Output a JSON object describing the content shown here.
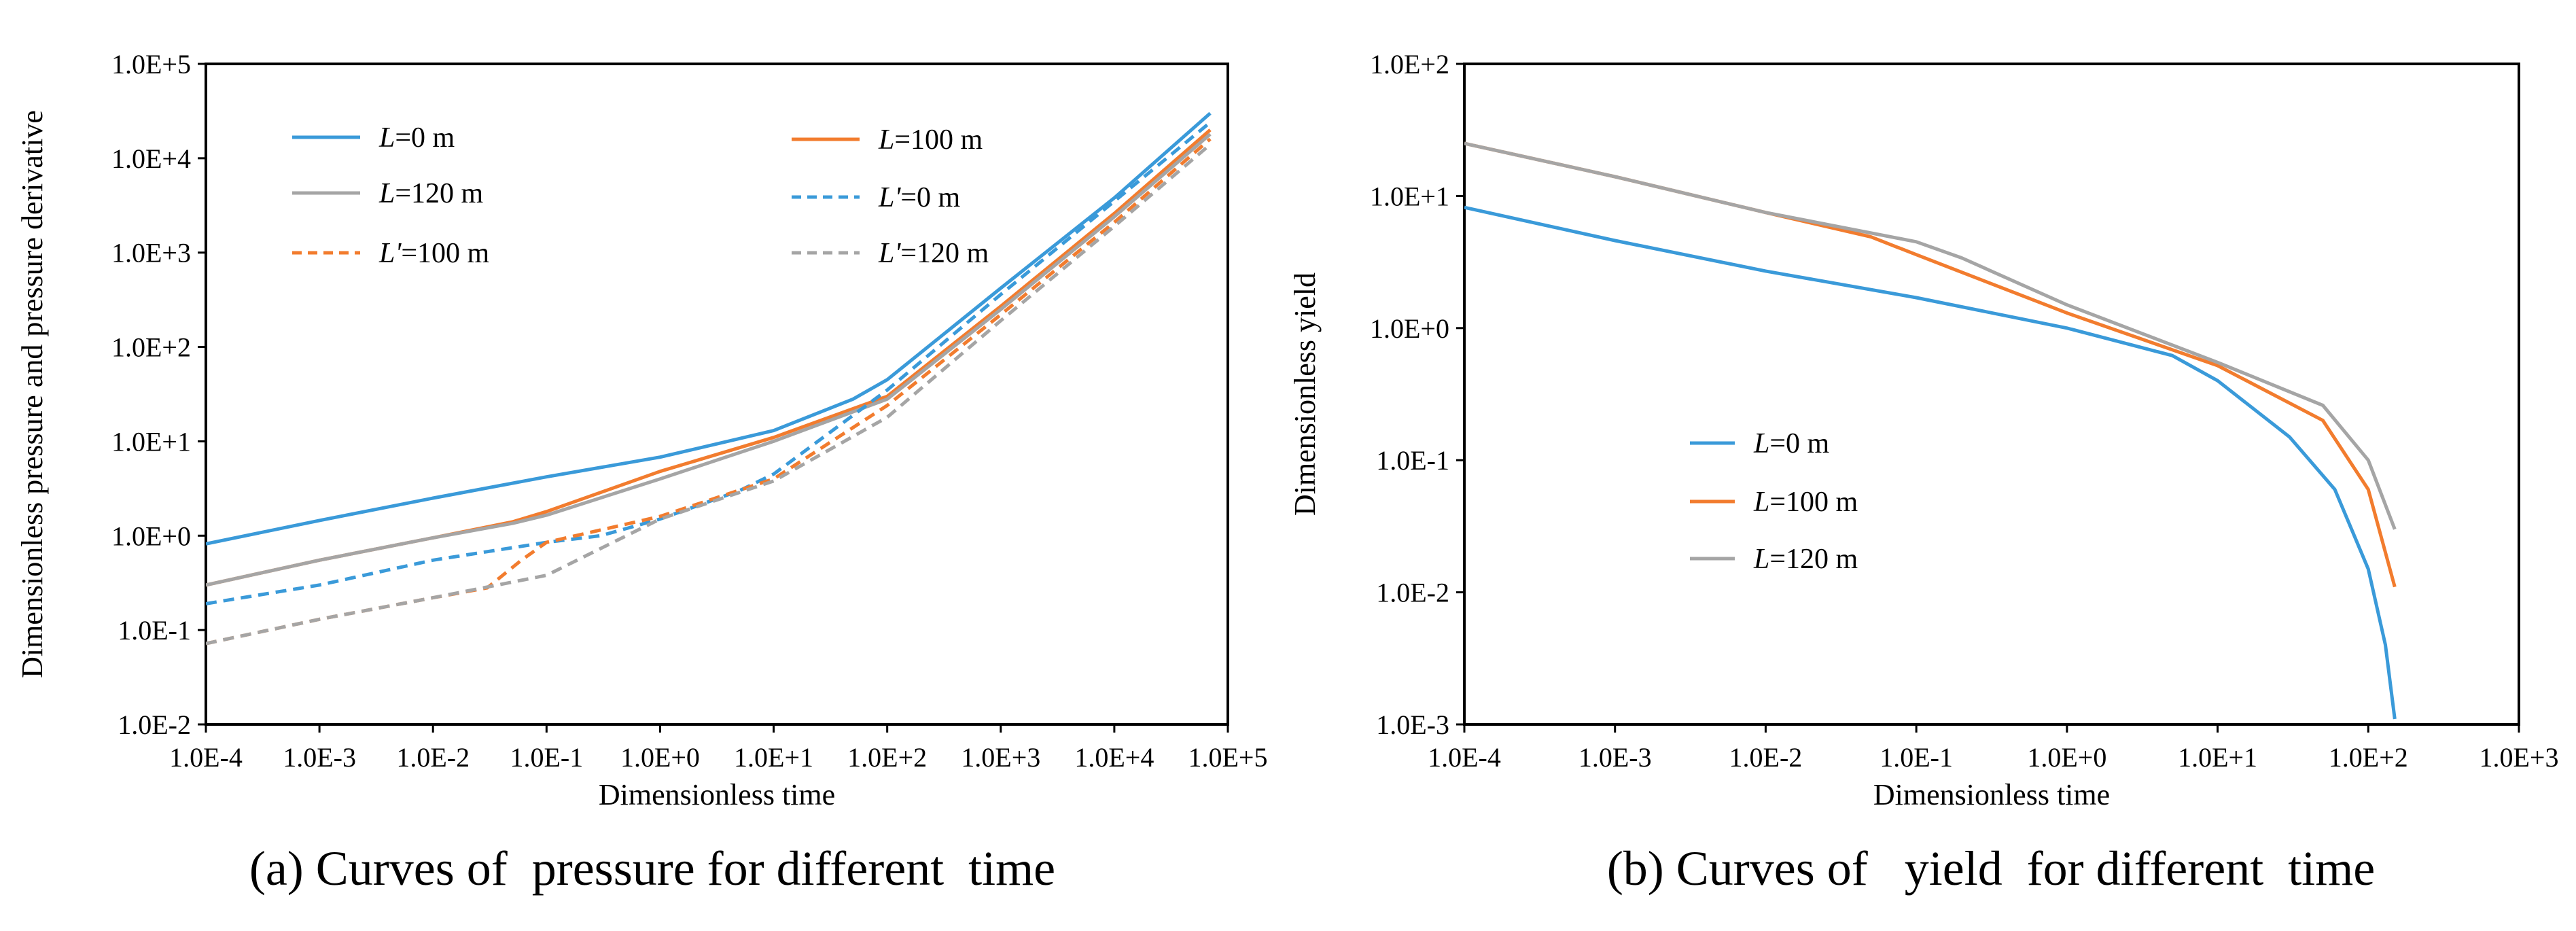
{
  "chart_data": [
    {
      "type": "line",
      "id": "a",
      "caption": "(a) Curves of  pressure for different  time",
      "xlabel": "Dimensionless time",
      "ylabel": "Dimensionless pressure and pressure derivative",
      "xscale": "log",
      "yscale": "log",
      "xlim": [
        0.0001,
        100000
      ],
      "ylim": [
        0.01,
        100000
      ],
      "xticks": [
        "1.0E-4",
        "1.0E-3",
        "1.0E-2",
        "1.0E-1",
        "1.0E+0",
        "1.0E+1",
        "1.0E+2",
        "1.0E+3",
        "1.0E+4",
        "1.0E+5"
      ],
      "yticks": [
        "1.0E-2",
        "1.0E-1",
        "1.0E+0",
        "1.0E+1",
        "1.0E+2",
        "1.0E+3",
        "1.0E+4",
        "1.0E+5"
      ],
      "grid": false,
      "legend": "top-left",
      "series": [
        {
          "name": "L=0 m",
          "symbol": "L",
          "suffix": "=0 m",
          "color": "#3A9AD9",
          "dash": "solid",
          "x": [
            0.0001,
            0.001,
            0.01,
            0.1,
            1,
            10,
            50,
            100,
            1000,
            10000,
            70000
          ],
          "y": [
            0.82,
            1.45,
            2.5,
            4.2,
            6.8,
            13,
            28,
            45,
            420,
            3800,
            30000
          ]
        },
        {
          "name": "L=100 m",
          "symbol": "L",
          "suffix": "=100 m",
          "color": "#F27C2E",
          "dash": "solid",
          "x": [
            0.0001,
            0.001,
            0.01,
            0.05,
            0.1,
            1,
            10,
            100,
            1000,
            10000,
            70000
          ],
          "y": [
            0.3,
            0.55,
            0.95,
            1.4,
            1.8,
            4.8,
            11,
            30,
            270,
            2600,
            20000
          ]
        },
        {
          "name": "L=120 m",
          "symbol": "L",
          "suffix": "=120 m",
          "color": "#A5A5A5",
          "dash": "solid",
          "x": [
            0.0001,
            0.001,
            0.01,
            0.05,
            0.1,
            1,
            10,
            100,
            1000,
            10000,
            70000
          ],
          "y": [
            0.3,
            0.55,
            0.95,
            1.35,
            1.65,
            4.0,
            10,
            28,
            250,
            2400,
            18000
          ]
        },
        {
          "name": "L'=0 m",
          "symbol": "L'",
          "suffix": "=0 m",
          "color": "#3A9AD9",
          "dash": "dashed",
          "x": [
            0.0001,
            0.001,
            0.01,
            0.1,
            0.3,
            1,
            5,
            10,
            100,
            1000,
            10000,
            70000
          ],
          "y": [
            0.19,
            0.3,
            0.55,
            0.85,
            1.0,
            1.5,
            3.0,
            4.5,
            35,
            360,
            3500,
            24000
          ]
        },
        {
          "name": "L'=100 m",
          "symbol": "L'",
          "suffix": "=100 m",
          "color": "#F27C2E",
          "dash": "dashed",
          "x": [
            0.0001,
            0.001,
            0.01,
            0.03,
            0.06,
            0.1,
            1,
            10,
            100,
            1000,
            10000,
            70000
          ],
          "y": [
            0.072,
            0.13,
            0.22,
            0.28,
            0.55,
            0.85,
            1.6,
            4.0,
            24,
            220,
            2100,
            16000
          ]
        },
        {
          "name": "L'=120 m",
          "symbol": "L'",
          "suffix": "=120 m",
          "color": "#A5A5A5",
          "dash": "dashed",
          "x": [
            0.0001,
            0.001,
            0.01,
            0.1,
            1,
            10,
            100,
            1000,
            10000,
            70000
          ],
          "y": [
            0.072,
            0.13,
            0.22,
            0.38,
            1.5,
            3.8,
            18,
            190,
            1900,
            14000
          ]
        }
      ]
    },
    {
      "type": "line",
      "id": "b",
      "caption": "(b) Curves of   yield  for different  time",
      "xlabel": "Dimensionless time",
      "ylabel": "Dimensionless yield",
      "xscale": "log",
      "yscale": "log",
      "xlim": [
        0.0001,
        1000
      ],
      "ylim": [
        0.001,
        100
      ],
      "xticks": [
        "1.0E-4",
        "1.0E-3",
        "1.0E-2",
        "1.0E-1",
        "1.0E+0",
        "1.0E+1",
        "1.0E+2",
        "1.0E+3"
      ],
      "yticks": [
        "1.0E-3",
        "1.0E-2",
        "1.0E-1",
        "1.0E+0",
        "1.0E+1",
        "1.0E+2"
      ],
      "grid": false,
      "legend": "center-left",
      "series": [
        {
          "name": "L=0 m",
          "symbol": "L",
          "suffix": "=0 m",
          "color": "#3A9AD9",
          "dash": "solid",
          "x": [
            0.0001,
            0.001,
            0.01,
            0.1,
            1,
            5,
            10,
            30,
            60,
            100,
            130,
            150
          ],
          "y": [
            8.2,
            4.6,
            2.7,
            1.7,
            1.0,
            0.62,
            0.4,
            0.15,
            0.06,
            0.015,
            0.004,
            0.0011
          ]
        },
        {
          "name": "L=100 m",
          "symbol": "L",
          "suffix": "=100 m",
          "color": "#F27C2E",
          "dash": "solid",
          "x": [
            0.0001,
            0.001,
            0.01,
            0.05,
            0.1,
            1,
            10,
            50,
            100,
            150
          ],
          "y": [
            25,
            14,
            7.5,
            4.9,
            3.6,
            1.3,
            0.52,
            0.2,
            0.06,
            0.011
          ]
        },
        {
          "name": "L=120 m",
          "symbol": "L",
          "suffix": "=120 m",
          "color": "#A5A5A5",
          "dash": "solid",
          "x": [
            0.0001,
            0.001,
            0.01,
            0.1,
            0.2,
            1,
            10,
            50,
            100,
            150
          ],
          "y": [
            25,
            14,
            7.5,
            4.5,
            3.4,
            1.5,
            0.55,
            0.26,
            0.1,
            0.03
          ]
        }
      ]
    }
  ]
}
